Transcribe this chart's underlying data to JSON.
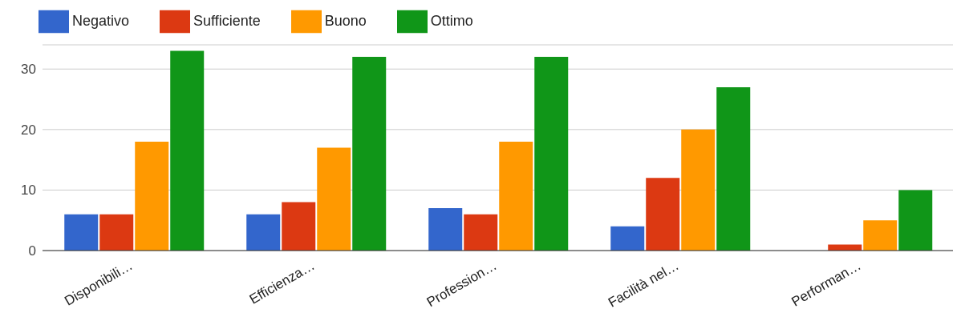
{
  "chart_data": {
    "type": "bar",
    "categories": [
      "Disponibili…",
      "Efficienza…",
      "Profession…",
      "Facilità nel…",
      "Performan…"
    ],
    "series": [
      {
        "name": "Negativo",
        "color": "#3366cc",
        "values": [
          6,
          6,
          7,
          4,
          0
        ]
      },
      {
        "name": "Sufficiente",
        "color": "#dc3912",
        "values": [
          6,
          8,
          6,
          12,
          1
        ]
      },
      {
        "name": "Buono",
        "color": "#ff9900",
        "values": [
          18,
          17,
          18,
          20,
          5
        ]
      },
      {
        "name": "Ottimo",
        "color": "#109618",
        "values": [
          33,
          32,
          32,
          27,
          10
        ]
      }
    ],
    "ylim": [
      0,
      34
    ],
    "yticks": [
      0,
      10,
      20,
      30
    ],
    "grid": "y",
    "legend": "top left"
  }
}
